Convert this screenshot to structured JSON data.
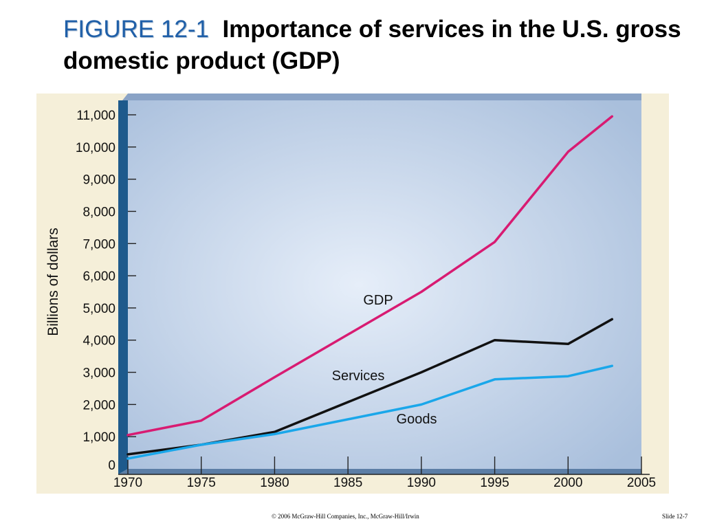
{
  "header": {
    "figure_label": "FIGURE 12-1",
    "title_text": "Importance of services in the U.S. gross domestic product (GDP)"
  },
  "chart_data": {
    "type": "line",
    "title": "Importance of services in the U.S. gross domestic product (GDP)",
    "ylabel": "Billions of dollars",
    "xlabel": "",
    "xlim": [
      1970,
      2005
    ],
    "ylim": [
      0,
      11000
    ],
    "x_ticks": [
      "1970",
      "1975",
      "1980",
      "1985",
      "1990",
      "1995",
      "2000",
      "2005"
    ],
    "y_ticks": [
      "0",
      "1,000",
      "2,000",
      "3,000",
      "4,000",
      "5,000",
      "6,000",
      "7,000",
      "8,000",
      "9,000",
      "10,000",
      "11,000"
    ],
    "grid": false,
    "legend": "inline labels",
    "series": [
      {
        "name": "GDP",
        "color": "#d81b72",
        "points": [
          [
            1970,
            1050
          ],
          [
            1975,
            1500
          ],
          [
            1980,
            2850
          ],
          [
            1990,
            5500
          ],
          [
            1995,
            7050
          ],
          [
            2000,
            9850
          ],
          [
            2003,
            10950
          ]
        ]
      },
      {
        "name": "Services",
        "color": "#111111",
        "points": [
          [
            1970,
            450
          ],
          [
            1975,
            750
          ],
          [
            1980,
            1150
          ],
          [
            1990,
            3000
          ],
          [
            1995,
            4000
          ],
          [
            2000,
            3880
          ],
          [
            2003,
            4650
          ]
        ]
      },
      {
        "name": "Goods",
        "color": "#1aa7ea",
        "points": [
          [
            1970,
            320
          ],
          [
            1975,
            750
          ],
          [
            1980,
            1080
          ],
          [
            1990,
            2000
          ],
          [
            1995,
            2780
          ],
          [
            2000,
            2880
          ],
          [
            2003,
            3200
          ]
        ]
      }
    ]
  },
  "footer": {
    "copyright": "© 2006 McGraw-Hill Companies, Inc., McGraw-Hill/Irwin",
    "slide": "Slide 12-7"
  }
}
